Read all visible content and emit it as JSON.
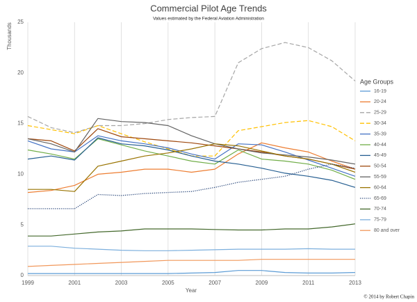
{
  "chart_data": {
    "type": "line",
    "title": "Commercial Pilot Age Trends",
    "subtitle": "Values estimated by the Federal Aviation Administration",
    "x_label": "Year",
    "y_label": "Thousands",
    "legend_title": "Age Groups",
    "legend_position": "right",
    "credit": "© 2014 by Robert Chapin",
    "grid": "x",
    "x": [
      1999,
      2000,
      2001,
      2002,
      2003,
      2004,
      2005,
      2006,
      2007,
      2008,
      2009,
      2010,
      2011,
      2012,
      2013
    ],
    "xlim": [
      1999,
      2013
    ],
    "xticks": [
      1999,
      2001,
      2003,
      2005,
      2007,
      2009,
      2011,
      2013
    ],
    "ylim": [
      0,
      25
    ],
    "yticks": [
      0,
      5,
      10,
      15,
      20,
      25
    ],
    "series": [
      {
        "name": "16-19",
        "color": "#5b9bd5",
        "dash": "solid",
        "values": [
          0.2,
          0.2,
          0.2,
          0.2,
          0.2,
          0.2,
          0.2,
          0.25,
          0.3,
          0.5,
          0.5,
          0.3,
          0.25,
          0.25,
          0.3
        ]
      },
      {
        "name": "20-24",
        "color": "#ed7d31",
        "dash": "solid",
        "values": [
          8.2,
          8.4,
          8.9,
          10.0,
          10.2,
          10.5,
          10.5,
          10.2,
          10.5,
          12.0,
          13.1,
          12.6,
          12.2,
          11.3,
          10.5
        ]
      },
      {
        "name": "25-29",
        "color": "#a5a5a5",
        "dash": "dashed",
        "values": [
          15.7,
          14.6,
          14.1,
          14.8,
          14.8,
          15.0,
          15.4,
          15.6,
          15.7,
          21.0,
          22.4,
          23.0,
          22.5,
          21.2,
          19.2
        ]
      },
      {
        "name": "30-34",
        "color": "#ffc000",
        "dash": "dashed",
        "values": [
          14.8,
          14.4,
          14.0,
          14.8,
          14.0,
          13.2,
          12.5,
          11.8,
          11.8,
          14.3,
          14.7,
          15.1,
          15.3,
          14.7,
          13.3
        ]
      },
      {
        "name": "35-39",
        "color": "#4472c4",
        "dash": "solid",
        "values": [
          13.3,
          12.5,
          12.2,
          13.8,
          13.3,
          13.0,
          12.6,
          12.0,
          11.5,
          13.0,
          12.9,
          12.2,
          11.4,
          10.6,
          9.8
        ]
      },
      {
        "name": "40-44",
        "color": "#70ad47",
        "dash": "solid",
        "values": [
          12.4,
          12.0,
          11.5,
          13.5,
          12.9,
          12.3,
          11.8,
          11.3,
          11.0,
          12.4,
          11.5,
          11.3,
          11.0,
          10.4,
          9.5
        ]
      },
      {
        "name": "45-49",
        "color": "#255e91",
        "dash": "solid",
        "values": [
          11.5,
          11.8,
          11.4,
          13.6,
          13.0,
          12.8,
          12.4,
          11.8,
          11.3,
          11.0,
          10.6,
          10.1,
          9.8,
          9.4,
          8.7
        ]
      },
      {
        "name": "50-54",
        "color": "#9e480e",
        "dash": "solid",
        "values": [
          13.5,
          13.3,
          12.3,
          14.5,
          13.7,
          13.5,
          13.3,
          13.1,
          12.8,
          12.5,
          12.2,
          11.8,
          11.5,
          11.0,
          10.5
        ]
      },
      {
        "name": "55-59",
        "color": "#636363",
        "dash": "solid",
        "values": [
          13.5,
          13.0,
          12.2,
          15.5,
          15.2,
          15.1,
          14.8,
          13.8,
          13.0,
          12.5,
          12.1,
          11.9,
          11.7,
          11.4,
          11.0
        ]
      },
      {
        "name": "60-64",
        "color": "#997300",
        "dash": "solid",
        "values": [
          8.5,
          8.5,
          8.3,
          10.8,
          11.3,
          11.8,
          12.1,
          12.5,
          13.0,
          12.8,
          12.3,
          11.8,
          11.5,
          11.0,
          10.2
        ]
      },
      {
        "name": "65-69",
        "color": "#264478",
        "dash": "dotted",
        "values": [
          6.6,
          6.6,
          6.6,
          8.0,
          7.9,
          8.1,
          8.2,
          8.3,
          8.7,
          9.2,
          9.5,
          9.8,
          10.5,
          11.0,
          10.6
        ]
      },
      {
        "name": "70-74",
        "color": "#43682b",
        "dash": "solid",
        "values": [
          3.9,
          3.9,
          4.1,
          4.3,
          4.4,
          4.6,
          4.6,
          4.6,
          4.55,
          4.5,
          4.5,
          4.6,
          4.6,
          4.8,
          5.1
        ]
      },
      {
        "name": "75-79",
        "color": "#7cafdd",
        "dash": "solid",
        "values": [
          2.9,
          2.9,
          2.7,
          2.6,
          2.5,
          2.45,
          2.45,
          2.5,
          2.55,
          2.6,
          2.6,
          2.6,
          2.65,
          2.6,
          2.6
        ]
      },
      {
        "name": "80 and over",
        "color": "#f1975a",
        "dash": "solid",
        "values": [
          0.9,
          1.0,
          1.1,
          1.2,
          1.3,
          1.4,
          1.5,
          1.5,
          1.5,
          1.5,
          1.6,
          1.6,
          1.6,
          1.6,
          1.6
        ]
      }
    ]
  }
}
